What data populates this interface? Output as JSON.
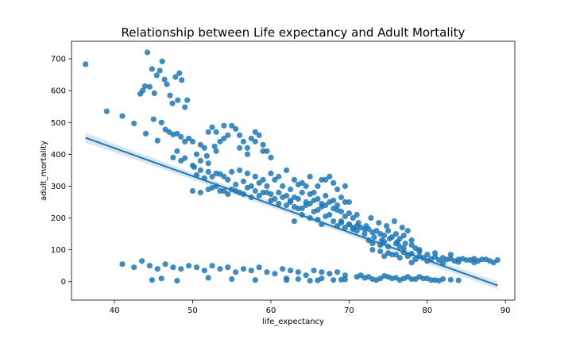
{
  "chart_data": {
    "type": "scatter",
    "title": "Relationship between Life expectancy and Adult Mortality",
    "xlabel": "life_expectancy",
    "ylabel": "adult_mortality",
    "xlim": [
      34.5,
      91.2
    ],
    "ylim": [
      -58,
      755
    ],
    "x_ticks": [
      40,
      50,
      60,
      70,
      80,
      90
    ],
    "y_ticks": [
      0,
      100,
      200,
      300,
      400,
      500,
      600,
      700
    ],
    "grid": false,
    "legend": "none",
    "point_color": "#1f77b4",
    "regression": {
      "x_start": 36.3,
      "y_start": 452,
      "x_end": 89.0,
      "y_end": -12
    },
    "clusters": [
      {
        "x": [
          36.3,
          39.0,
          41.0,
          42.5,
          43.3,
          43.6,
          43.9,
          44.2,
          44.5,
          44.8,
          45.1,
          45.4,
          45.8,
          46.1,
          46.4,
          46.7,
          47.1,
          47.4,
          47.8,
          48.1,
          48.3,
          48.6,
          49.0,
          49.3
        ],
        "y": [
          683,
          535,
          520,
          497,
          590,
          600,
          614,
          720,
          612,
          668,
          592,
          648,
          663,
          692,
          635,
          620,
          585,
          560,
          643,
          570,
          655,
          633,
          548,
          570
        ]
      },
      {
        "x": [
          44.0,
          45.0,
          45.5,
          46.0,
          46.5,
          47.0,
          47.5,
          48.0,
          48.5,
          49.0,
          49.5,
          50.0,
          50.5,
          51.0,
          51.5,
          52.0,
          52.5,
          53.0,
          53.5,
          54.0,
          54.5,
          55.0,
          55.5,
          56.0,
          56.5,
          57.0,
          57.5,
          58.0,
          58.5,
          59.0,
          59.5,
          60.0,
          48.0,
          49.0,
          51.0,
          52.0,
          53.0,
          54.0,
          56.0,
          57.0,
          58.0,
          59.0,
          50.2,
          51.8,
          52.8
        ],
        "y": [
          465,
          510,
          443,
          500,
          478,
          470,
          462,
          465,
          455,
          440,
          450,
          440,
          400,
          430,
          420,
          470,
          485,
          410,
          440,
          490,
          460,
          490,
          480,
          460,
          440,
          420,
          450,
          470,
          460,
          430,
          410,
          390,
          410,
          388,
          380,
          372,
          470,
          450,
          420,
          400,
          440,
          410,
          360,
          395,
          425
        ]
      },
      {
        "x": [
          47.5,
          48.5,
          50.0,
          51.0,
          52.0,
          53.0,
          54.0,
          55.0,
          56.0,
          57.0,
          58.0,
          59.0,
          60.0,
          61.0,
          62.0,
          63.0,
          64.0,
          65.0,
          66.0,
          67.0,
          68.0,
          50.5,
          51.5,
          52.5,
          53.5,
          54.5,
          55.5,
          56.5,
          57.5,
          58.5,
          59.5,
          60.5,
          61.5,
          62.5,
          63.5,
          64.5,
          65.5,
          66.5,
          67.5,
          68.5,
          69.5
        ],
        "y": [
          390,
          380,
          365,
          350,
          345,
          340,
          330,
          345,
          350,
          340,
          330,
          320,
          340,
          330,
          350,
          320,
          310,
          330,
          300,
          320,
          310,
          335,
          325,
          330,
          338,
          320,
          305,
          315,
          300,
          310,
          300,
          320,
          300,
          290,
          305,
          300,
          280,
          320,
          330,
          290,
          300
        ]
      },
      {
        "x": [
          50.0,
          51.0,
          52.0,
          53.0,
          54.0,
          55.0,
          56.0,
          57.0,
          58.0,
          59.0,
          60.0,
          61.0,
          62.0,
          63.0,
          64.0,
          65.0,
          66.0,
          67.0,
          68.0,
          69.0,
          70.0,
          52.5,
          53.5,
          54.5,
          55.5,
          56.5,
          57.5,
          58.5,
          59.5,
          60.5,
          61.5,
          62.5,
          63.5,
          64.5,
          65.5,
          66.5,
          67.5,
          68.5,
          69.5
        ],
        "y": [
          285,
          280,
          290,
          300,
          285,
          290,
          280,
          295,
          285,
          280,
          275,
          280,
          270,
          265,
          280,
          275,
          260,
          270,
          255,
          265,
          250,
          295,
          285,
          275,
          285,
          275,
          265,
          270,
          280,
          260,
          265,
          255,
          260,
          250,
          255,
          245,
          250,
          240,
          250
        ]
      },
      {
        "x": [
          60.0,
          61.0,
          62.0,
          63.0,
          64.0,
          65.0,
          66.0,
          67.0,
          68.0,
          69.0,
          70.0,
          71.0,
          62.5,
          63.5,
          64.5,
          65.5,
          66.5,
          67.5,
          68.5,
          69.5,
          70.5,
          64.0,
          65.0,
          66.0,
          67.0,
          68.0,
          69.0,
          70.0,
          71.0,
          63.0,
          66.5,
          68.5,
          70.5,
          72.0
        ],
        "y": [
          255,
          245,
          240,
          235,
          230,
          245,
          225,
          240,
          230,
          220,
          215,
          210,
          250,
          230,
          240,
          220,
          235,
          210,
          225,
          205,
          200,
          210,
          200,
          195,
          205,
          190,
          185,
          180,
          175,
          190,
          180,
          175,
          170,
          165
        ]
      },
      {
        "x": [
          69.0,
          69.5,
          70.0,
          70.5,
          71.0,
          71.5,
          72.0,
          72.5,
          73.0,
          73.5,
          74.0,
          74.5,
          75.0,
          75.5,
          76.0,
          76.5,
          77.0,
          77.5,
          78.0,
          71.2,
          72.2,
          73.2,
          74.2,
          75.2,
          76.2,
          77.2,
          72.8,
          73.8,
          74.8,
          75.8,
          76.8,
          73.0,
          74.0,
          75.0,
          76.0,
          77.0,
          78.0,
          79.0,
          72.5,
          74.5,
          76.5,
          78.5
        ],
        "y": [
          190,
          170,
          180,
          165,
          160,
          170,
          150,
          165,
          155,
          160,
          150,
          145,
          160,
          140,
          150,
          135,
          145,
          160,
          130,
          185,
          175,
          140,
          130,
          135,
          125,
          120,
          200,
          185,
          175,
          190,
          170,
          120,
          115,
          110,
          120,
          105,
          115,
          100,
          130,
          125,
          110,
          105
        ]
      },
      {
        "x": [
          73.0,
          74.0,
          75.0,
          76.0,
          77.0,
          78.0,
          79.0,
          80.0,
          81.0,
          82.0,
          83.0,
          84.0,
          85.0,
          86.0,
          87.0,
          88.0,
          89.0,
          74.5,
          75.5,
          76.5,
          77.5,
          78.5,
          79.5,
          80.5,
          81.5,
          82.5,
          83.5,
          84.5,
          85.5,
          86.5,
          87.5,
          88.5,
          78.0,
          80.0,
          82.0,
          84.0,
          86.0,
          79.0,
          81.0,
          83.0
        ],
        "y": [
          100,
          95,
          90,
          85,
          92,
          88,
          80,
          85,
          78,
          75,
          72,
          70,
          68,
          72,
          70,
          65,
          68,
          80,
          85,
          75,
          80,
          70,
          75,
          72,
          68,
          70,
          65,
          72,
          68,
          65,
          70,
          60,
          60,
          65,
          58,
          62,
          60,
          95,
          90,
          85
        ]
      },
      {
        "x": [
          41.0,
          42.5,
          43.5,
          44.5,
          45.5,
          46.5,
          47.5,
          48.5,
          49.5,
          50.5,
          51.5,
          52.5,
          53.5,
          54.5,
          55.5,
          56.5,
          57.5,
          58.5,
          59.5,
          60.5,
          61.5,
          62.5,
          63.5,
          64.5,
          65.5,
          66.5,
          67.5,
          68.5,
          69.5,
          44.8,
          46.0,
          48.0,
          52.0,
          55.0,
          58.0,
          62.0,
          66.0,
          69.0
        ],
        "y": [
          55,
          45,
          65,
          50,
          40,
          55,
          45,
          40,
          50,
          45,
          35,
          50,
          40,
          45,
          30,
          40,
          35,
          45,
          30,
          25,
          40,
          35,
          30,
          20,
          35,
          30,
          25,
          30,
          20,
          5,
          10,
          3,
          12,
          8,
          5,
          10,
          4,
          6
        ]
      },
      {
        "x": [
          62.0,
          63.5,
          65.0,
          66.5,
          68.0,
          69.5,
          71.0,
          72.0,
          73.0,
          74.0,
          75.0,
          76.0,
          77.0,
          78.0,
          79.0,
          80.0,
          81.0,
          82.0,
          83.0,
          84.0,
          71.5,
          72.5,
          73.5,
          74.5,
          75.5,
          76.5,
          77.5,
          78.5,
          79.5,
          80.5,
          81.5
        ],
        "y": [
          5,
          8,
          3,
          10,
          5,
          7,
          15,
          12,
          8,
          10,
          15,
          12,
          10,
          8,
          15,
          10,
          5,
          8,
          6,
          4,
          20,
          15,
          5,
          18,
          10,
          5,
          15,
          8,
          10,
          5,
          3
        ]
      }
    ]
  }
}
